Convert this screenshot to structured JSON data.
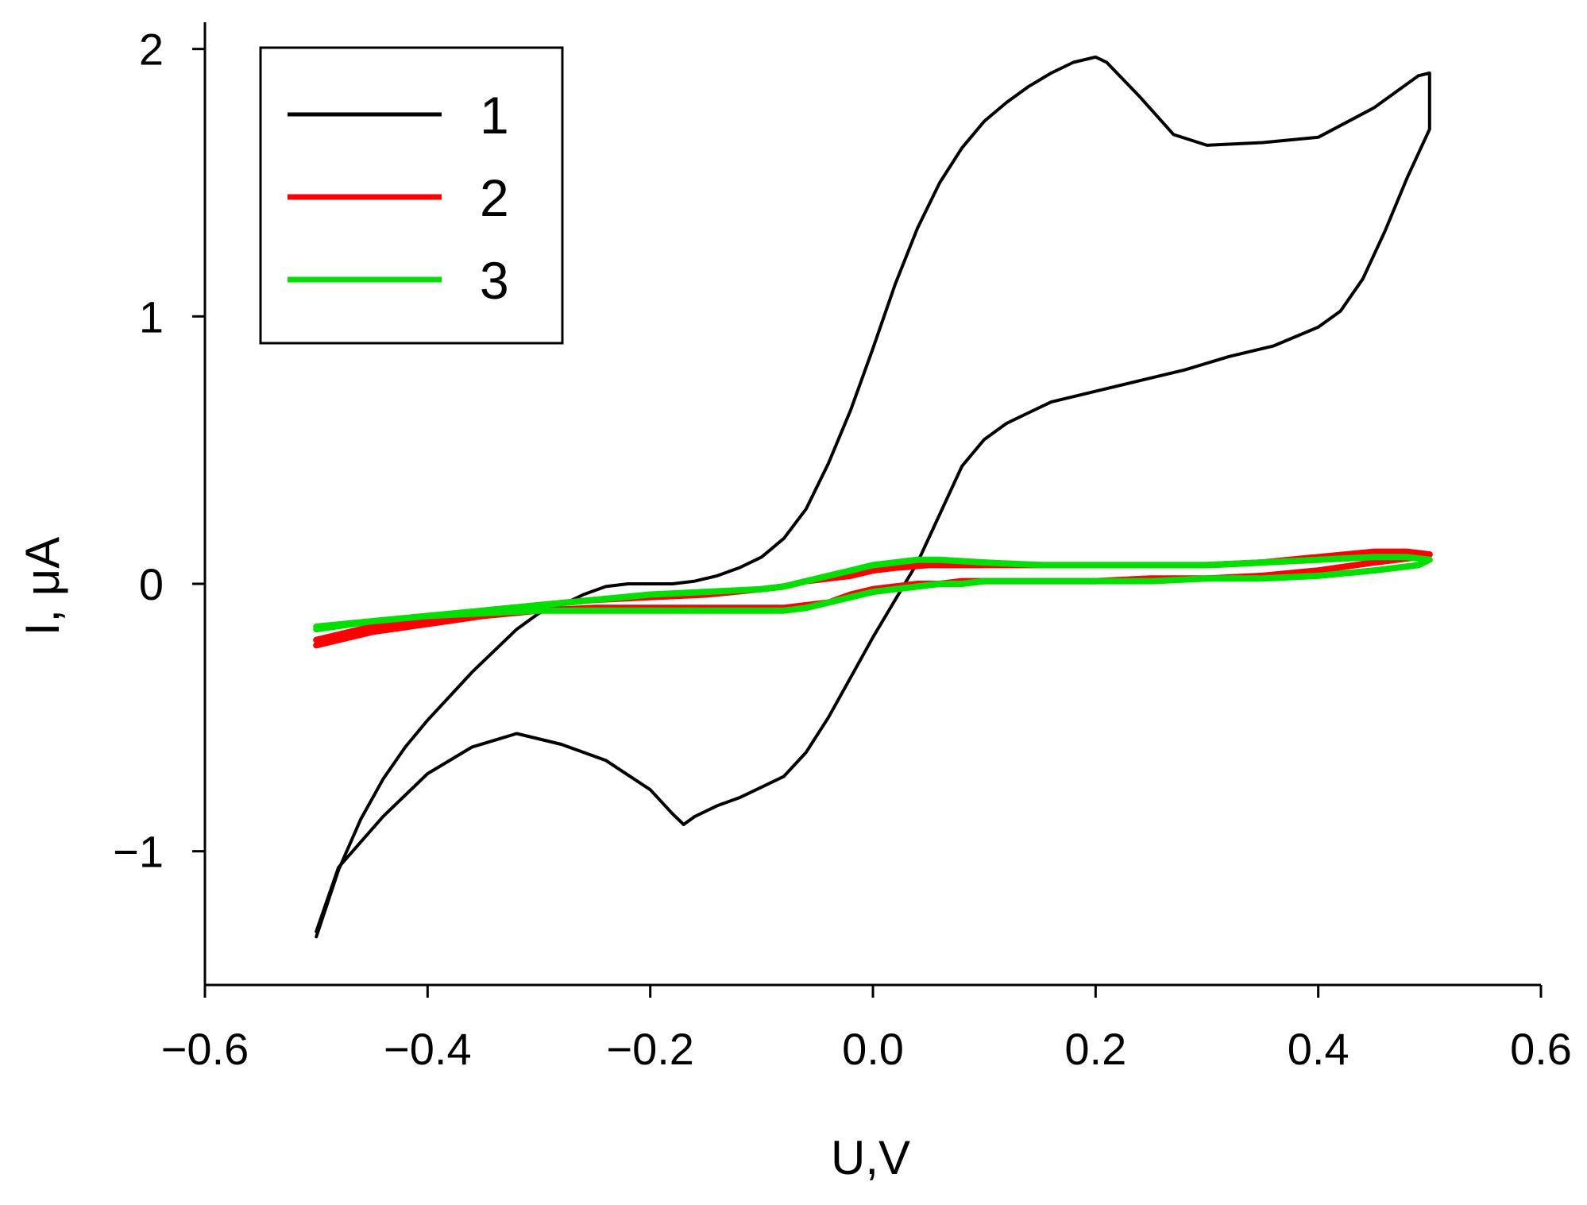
{
  "chart_data": {
    "type": "line",
    "title": "",
    "xlabel": "U,V",
    "ylabel": "I, μA",
    "xlim": [
      -0.6,
      0.6
    ],
    "ylim": [
      -1.5,
      2.1
    ],
    "x_ticks": [
      -0.6,
      -0.4,
      -0.2,
      0.0,
      0.2,
      0.4,
      0.6
    ],
    "x_tick_labels": [
      "−0.6",
      "−0.4",
      "−0.2",
      "0.0",
      "0.2",
      "0.4",
      "0.6"
    ],
    "y_ticks": [
      -1,
      0,
      1,
      2
    ],
    "y_tick_labels": [
      "−1",
      "0",
      "1",
      "2"
    ],
    "grid": false,
    "legend_position": "top-left",
    "series": [
      {
        "name": "1",
        "color": "#000000",
        "x": [
          -0.5,
          -0.48,
          -0.46,
          -0.44,
          -0.42,
          -0.4,
          -0.38,
          -0.36,
          -0.34,
          -0.32,
          -0.3,
          -0.28,
          -0.26,
          -0.24,
          -0.22,
          -0.2,
          -0.18,
          -0.16,
          -0.14,
          -0.12,
          -0.1,
          -0.08,
          -0.06,
          -0.04,
          -0.02,
          0.0,
          0.02,
          0.04,
          0.06,
          0.08,
          0.1,
          0.12,
          0.14,
          0.16,
          0.18,
          0.2,
          0.21,
          0.24,
          0.27,
          0.3,
          0.35,
          0.4,
          0.45,
          0.49,
          0.5,
          0.5,
          0.48,
          0.46,
          0.44,
          0.42,
          0.4,
          0.36,
          0.32,
          0.28,
          0.24,
          0.2,
          0.16,
          0.14,
          0.12,
          0.1,
          0.08,
          0.06,
          0.04,
          0.02,
          0.0,
          -0.02,
          -0.04,
          -0.06,
          -0.08,
          -0.1,
          -0.12,
          -0.14,
          -0.16,
          -0.17,
          -0.18,
          -0.2,
          -0.24,
          -0.28,
          -0.32,
          -0.36,
          -0.4,
          -0.44,
          -0.48,
          -0.5
        ],
        "y": [
          -1.32,
          -1.07,
          -0.88,
          -0.73,
          -0.61,
          -0.51,
          -0.42,
          -0.33,
          -0.25,
          -0.17,
          -0.11,
          -0.08,
          -0.04,
          -0.01,
          0.0,
          0.0,
          0.0,
          0.01,
          0.03,
          0.06,
          0.1,
          0.17,
          0.28,
          0.45,
          0.65,
          0.88,
          1.12,
          1.33,
          1.5,
          1.63,
          1.73,
          1.8,
          1.86,
          1.91,
          1.95,
          1.97,
          1.95,
          1.82,
          1.68,
          1.64,
          1.65,
          1.67,
          1.78,
          1.9,
          1.91,
          1.7,
          1.52,
          1.32,
          1.14,
          1.02,
          0.96,
          0.89,
          0.85,
          0.8,
          0.76,
          0.72,
          0.68,
          0.64,
          0.6,
          0.54,
          0.44,
          0.26,
          0.08,
          -0.06,
          -0.2,
          -0.35,
          -0.5,
          -0.63,
          -0.72,
          -0.76,
          -0.8,
          -0.83,
          -0.87,
          -0.9,
          -0.86,
          -0.77,
          -0.66,
          -0.6,
          -0.56,
          -0.61,
          -0.71,
          -0.87,
          -1.06,
          -1.3
        ]
      },
      {
        "name": "2",
        "color": "#ff0000",
        "x": [
          -0.5,
          -0.45,
          -0.4,
          -0.35,
          -0.3,
          -0.25,
          -0.2,
          -0.15,
          -0.1,
          -0.08,
          -0.06,
          -0.04,
          -0.02,
          0.0,
          0.02,
          0.04,
          0.06,
          0.08,
          0.1,
          0.15,
          0.2,
          0.25,
          0.3,
          0.35,
          0.4,
          0.45,
          0.49,
          0.5,
          0.48,
          0.45,
          0.4,
          0.35,
          0.3,
          0.25,
          0.2,
          0.15,
          0.1,
          0.05,
          0.02,
          0.0,
          -0.02,
          -0.04,
          -0.06,
          -0.08,
          -0.1,
          -0.15,
          -0.2,
          -0.25,
          -0.3,
          -0.35,
          -0.4,
          -0.45,
          -0.5
        ],
        "y": [
          -0.23,
          -0.18,
          -0.15,
          -0.12,
          -0.1,
          -0.09,
          -0.09,
          -0.09,
          -0.09,
          -0.09,
          -0.08,
          -0.07,
          -0.04,
          -0.02,
          -0.01,
          0.0,
          0.0,
          0.01,
          0.01,
          0.01,
          0.01,
          0.02,
          0.02,
          0.03,
          0.05,
          0.08,
          0.1,
          0.11,
          0.12,
          0.12,
          0.1,
          0.08,
          0.07,
          0.07,
          0.07,
          0.07,
          0.07,
          0.07,
          0.06,
          0.05,
          0.03,
          0.02,
          0.01,
          -0.01,
          -0.02,
          -0.04,
          -0.05,
          -0.06,
          -0.08,
          -0.1,
          -0.13,
          -0.16,
          -0.21
        ]
      },
      {
        "name": "3",
        "color": "#00e000",
        "x": [
          -0.5,
          -0.45,
          -0.4,
          -0.35,
          -0.3,
          -0.25,
          -0.2,
          -0.15,
          -0.1,
          -0.08,
          -0.06,
          -0.04,
          -0.02,
          0.0,
          0.02,
          0.04,
          0.06,
          0.08,
          0.1,
          0.15,
          0.2,
          0.25,
          0.3,
          0.35,
          0.4,
          0.45,
          0.49,
          0.5,
          0.48,
          0.45,
          0.4,
          0.35,
          0.3,
          0.25,
          0.2,
          0.15,
          0.1,
          0.06,
          0.04,
          0.02,
          0.0,
          -0.02,
          -0.04,
          -0.06,
          -0.08,
          -0.1,
          -0.15,
          -0.2,
          -0.25,
          -0.3,
          -0.35,
          -0.4,
          -0.45,
          -0.5
        ],
        "y": [
          -0.17,
          -0.14,
          -0.12,
          -0.11,
          -0.1,
          -0.1,
          -0.1,
          -0.1,
          -0.1,
          -0.1,
          -0.09,
          -0.07,
          -0.05,
          -0.03,
          -0.02,
          -0.01,
          0.0,
          0.0,
          0.01,
          0.01,
          0.01,
          0.01,
          0.02,
          0.02,
          0.03,
          0.05,
          0.07,
          0.09,
          0.1,
          0.1,
          0.09,
          0.08,
          0.07,
          0.07,
          0.07,
          0.07,
          0.08,
          0.09,
          0.09,
          0.08,
          0.07,
          0.05,
          0.03,
          0.01,
          -0.01,
          -0.02,
          -0.03,
          -0.04,
          -0.06,
          -0.08,
          -0.1,
          -0.12,
          -0.14,
          -0.16
        ]
      }
    ]
  }
}
